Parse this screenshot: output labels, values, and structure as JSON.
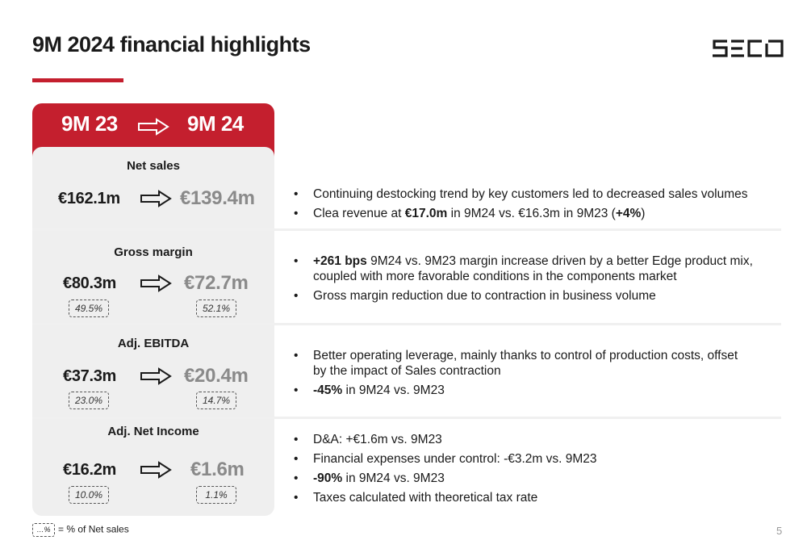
{
  "title": "9M 2024 financial highlights",
  "logo_text": "SECO",
  "colors": {
    "accent": "#c41f2e",
    "panel": "#efefef",
    "muted": "#8a8a8a"
  },
  "header": {
    "from": "9M 23",
    "to": "9M 24",
    "arrow_icon": "outline-right-arrow"
  },
  "sections": [
    {
      "label": "Net sales",
      "from": "€162.1m",
      "to": "€139.4m",
      "bullets": [
        [
          {
            "t": "Continuing destocking trend by key customers led to decreased sales volumes",
            "b": false
          }
        ],
        [
          {
            "t": "Clea revenue at ",
            "b": false
          },
          {
            "t": "€17.0m",
            "b": true
          },
          {
            "t": " in 9M24 vs. €16.3m in 9M23 (",
            "b": false
          },
          {
            "t": "+4%",
            "b": true
          },
          {
            "t": ")",
            "b": false
          }
        ]
      ]
    },
    {
      "label": "Gross margin",
      "from": "€80.3m",
      "to": "€72.7m",
      "from_pct": "49.5%",
      "to_pct": "52.1%",
      "bullets": [
        [
          {
            "t": "+261 bps",
            "b": true
          },
          {
            "t": " 9M24 vs. 9M23 margin increase driven by a better Edge product mix, coupled with more favorable conditions in the components market",
            "b": false
          }
        ],
        [
          {
            "t": "Gross margin reduction due to contraction in business volume",
            "b": false
          }
        ]
      ]
    },
    {
      "label": "Adj. EBITDA",
      "from": "€37.3m",
      "to": "€20.4m",
      "from_pct": "23.0%",
      "to_pct": "14.7%",
      "bullets": [
        [
          {
            "t": "Better operating leverage, mainly thanks to control of production costs, offset by the impact of Sales contraction",
            "b": false
          }
        ],
        [
          {
            "t": "-45%",
            "b": true
          },
          {
            "t": " in 9M24 vs. 9M23",
            "b": false
          }
        ]
      ]
    },
    {
      "label": "Adj. Net Income",
      "from": "€16.2m",
      "to": "€1.6m",
      "from_pct": "10.0%",
      "to_pct": "1.1%",
      "bullets": [
        [
          {
            "t": "D&A: +€1.6m vs. 9M23",
            "b": false
          }
        ],
        [
          {
            "t": "Financial expenses under control: -€3.2m vs. 9M23",
            "b": false
          }
        ],
        [
          {
            "t": "-90%",
            "b": true
          },
          {
            "t": " in 9M24 vs. 9M23",
            "b": false
          }
        ],
        [
          {
            "t": "Taxes calculated with theoretical tax rate",
            "b": false
          }
        ]
      ]
    }
  ],
  "legend": {
    "box": "…%",
    "text": "= % of Net sales"
  },
  "page_number": "5"
}
